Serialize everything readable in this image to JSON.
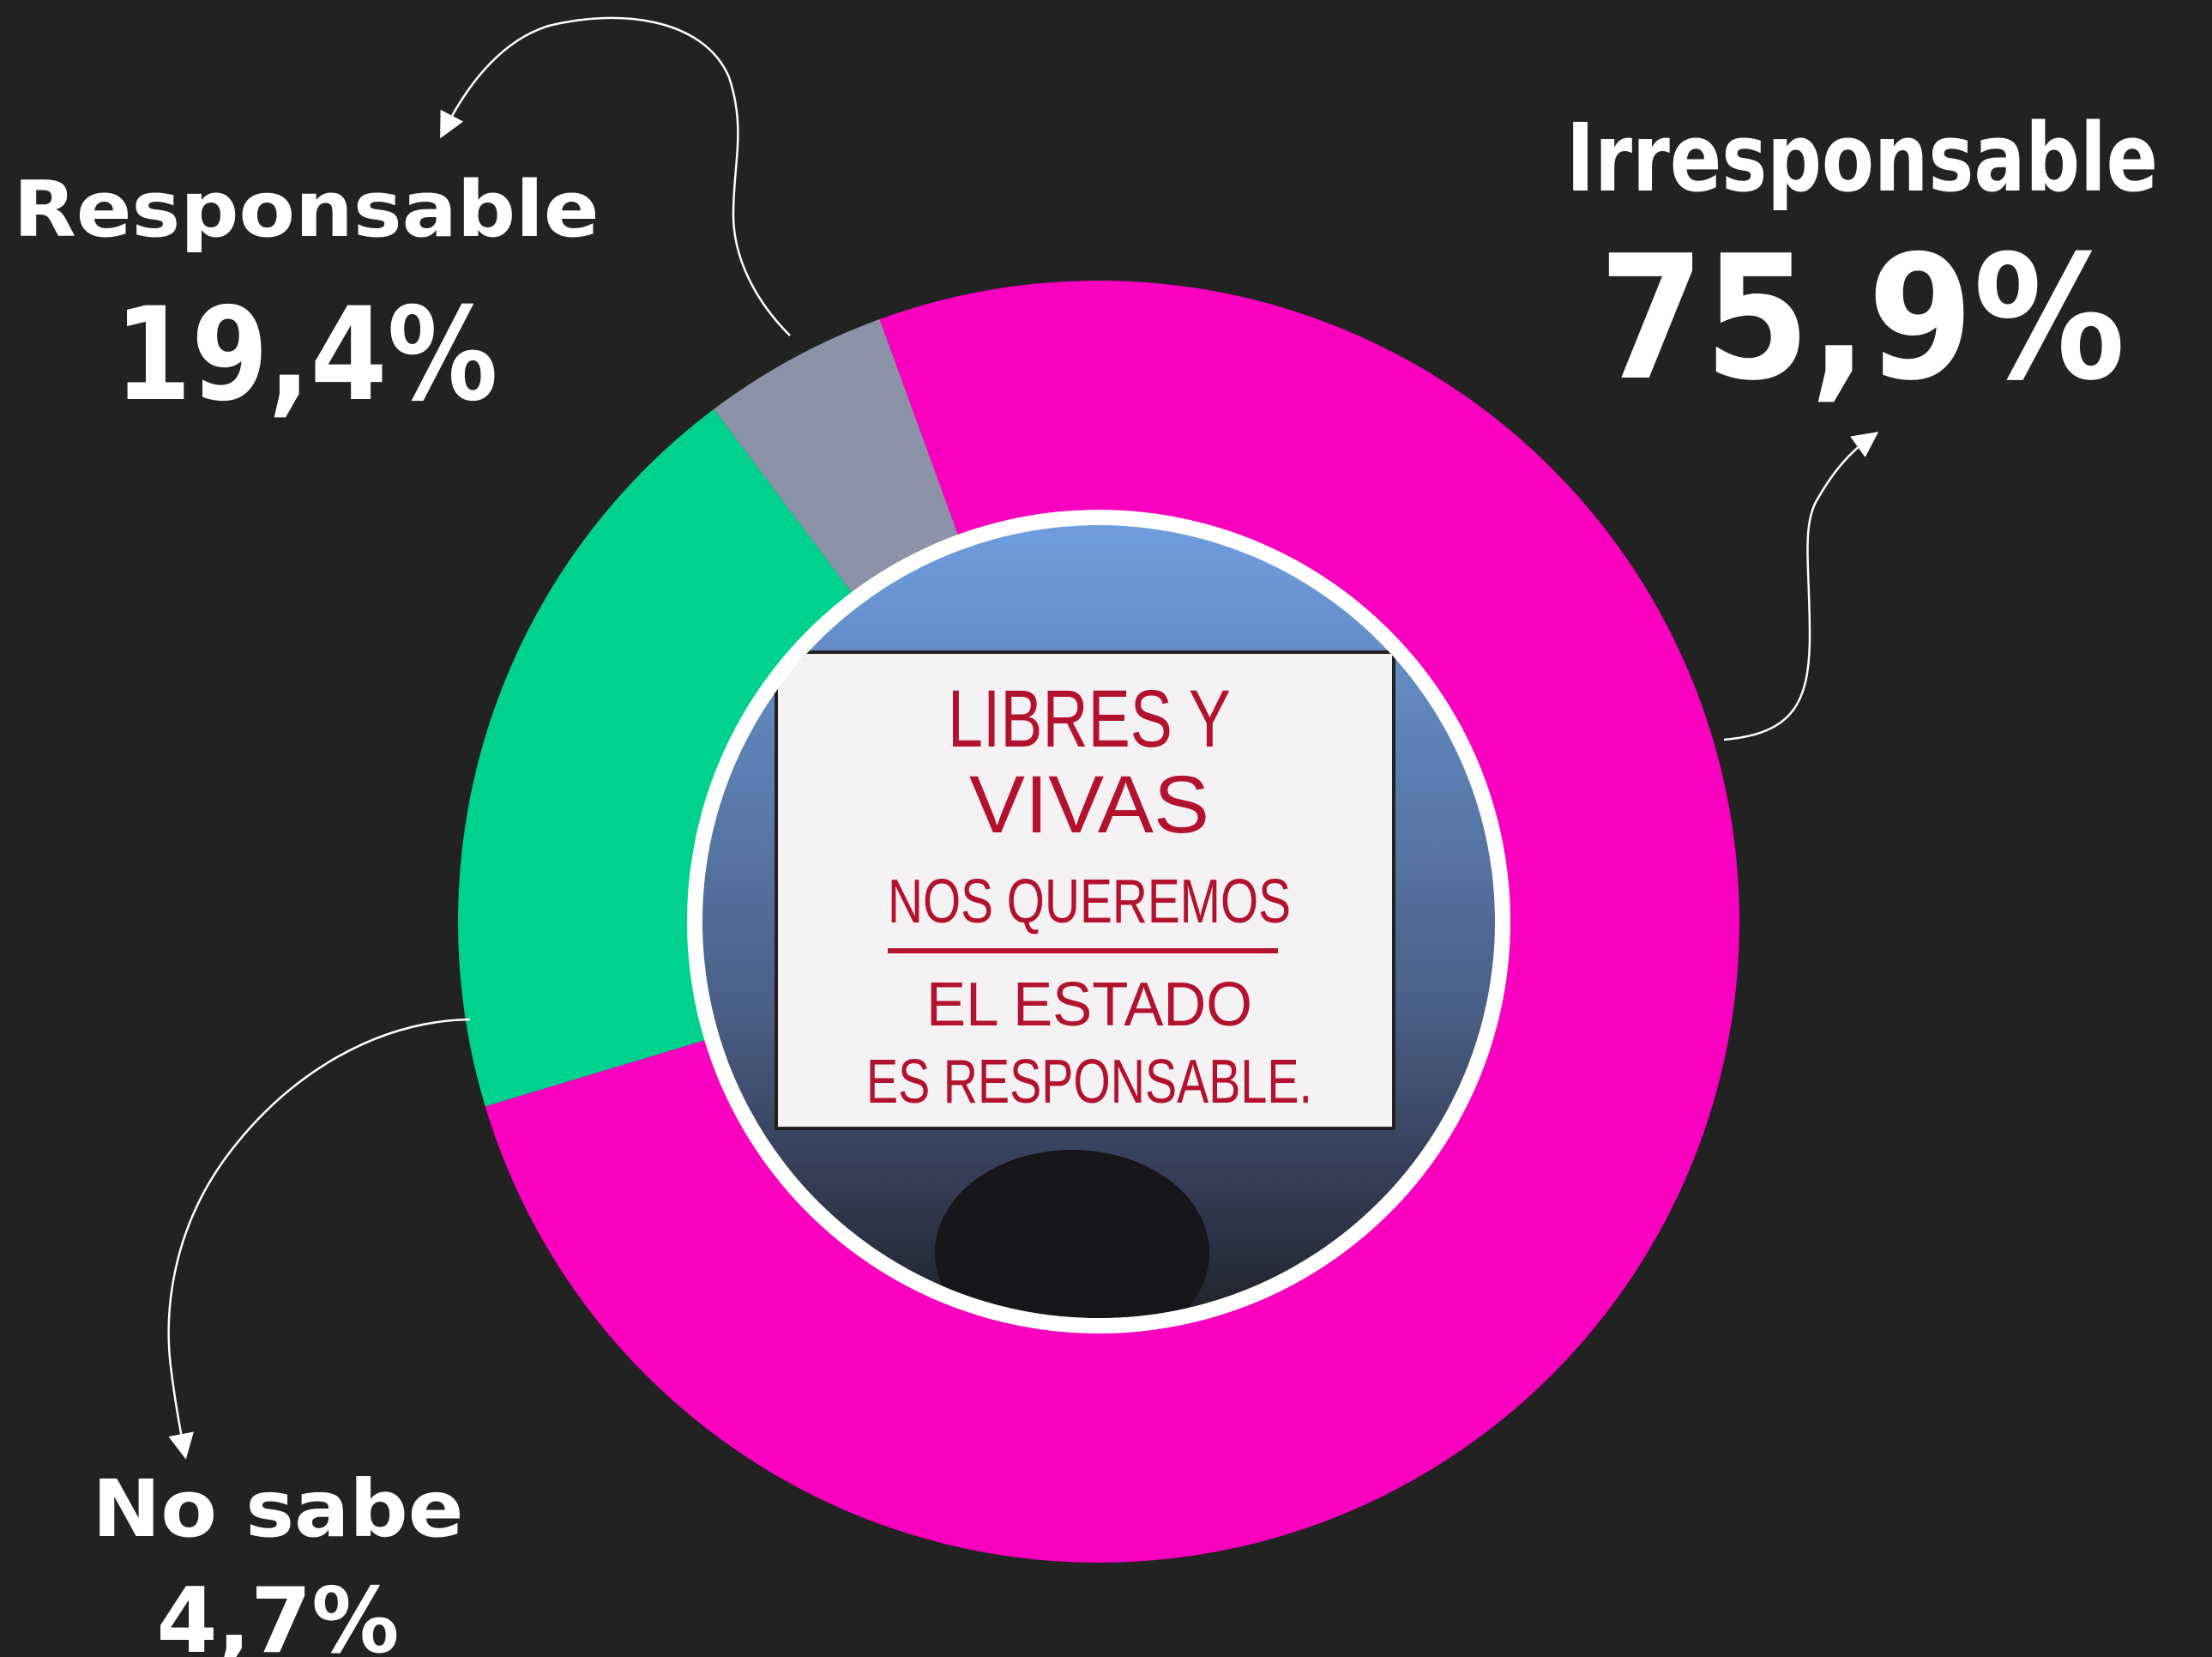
{
  "chart_data": {
    "type": "donut",
    "categories": [
      "Irresponsable",
      "Responsable",
      "No sabe"
    ],
    "values": [
      75.9,
      19.4,
      4.7
    ],
    "value_labels": [
      "75,9%",
      "19,4%",
      "4,7%"
    ],
    "colors": [
      "#fa00bf",
      "#00d18f",
      "#8c93a8"
    ]
  },
  "photo_sign": [
    "LIBRES Y",
    "VIVAS",
    "NOS QUEREMOS",
    "EL ESTADO",
    "ES RESPONSABLE."
  ]
}
